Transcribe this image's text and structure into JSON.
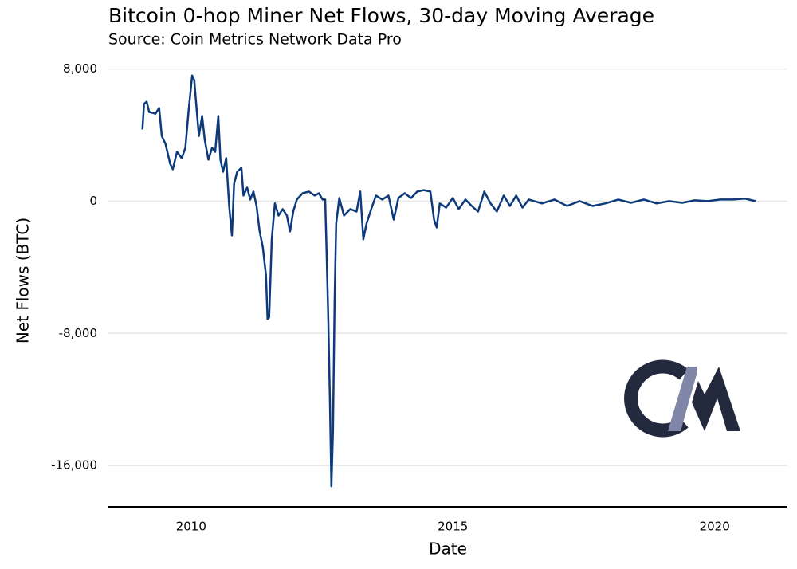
{
  "chart_data": {
    "type": "line",
    "title": "Bitcoin 0-hop Miner Net Flows, 30-day Moving Average",
    "subtitle": "Source: Coin Metrics Network Data Pro",
    "x_label": "Date",
    "y_label": "Net Flows (BTC)",
    "xlim": [
      2008.42,
      2021.39
    ],
    "xticks": [
      2010,
      2015,
      2020
    ],
    "ylim": [
      -18500,
      8800
    ],
    "yticks": [
      {
        "value": -16000,
        "label": "-16,000"
      },
      {
        "value": -8000,
        "label": "-8,000"
      },
      0,
      {
        "value": 8000,
        "label": "8,000"
      }
    ],
    "grid": true,
    "series": [
      {
        "color": "#0d3a7a",
        "x": [
          2009.07,
          2009.1,
          2009.15,
          2009.2,
          2009.32,
          2009.39,
          2009.44,
          2009.51,
          2009.6,
          2009.65,
          2009.73,
          2009.82,
          2009.89,
          2009.95,
          2010.02,
          2010.06,
          2010.11,
          2010.15,
          2010.21,
          2010.26,
          2010.33,
          2010.4,
          2010.46,
          2010.52,
          2010.56,
          2010.61,
          2010.67,
          2010.73,
          2010.78,
          2010.82,
          2010.88,
          2010.96,
          2011.0,
          2011.07,
          2011.13,
          2011.19,
          2011.25,
          2011.31,
          2011.37,
          2011.43,
          2011.46,
          2011.49,
          2011.54,
          2011.6,
          2011.67,
          2011.75,
          2011.83,
          2011.89,
          2011.95,
          2012.02,
          2012.13,
          2012.25,
          2012.36,
          2012.44,
          2012.51,
          2012.56,
          2012.59,
          2012.62,
          2012.65,
          2012.68,
          2012.71,
          2012.74,
          2012.77,
          2012.83,
          2012.92,
          2013.04,
          2013.16,
          2013.23,
          2013.29,
          2013.35,
          2013.44,
          2013.53,
          2013.65,
          2013.77,
          2013.87,
          2013.96,
          2014.08,
          2014.2,
          2014.32,
          2014.44,
          2014.57,
          2014.64,
          2014.69,
          2014.75,
          2014.87,
          2015.0,
          2015.11,
          2015.24,
          2015.36,
          2015.48,
          2015.6,
          2015.72,
          2015.84,
          2015.97,
          2016.09,
          2016.21,
          2016.33,
          2016.45,
          2016.7,
          2016.94,
          2017.18,
          2017.42,
          2017.67,
          2017.91,
          2018.16,
          2018.4,
          2018.65,
          2018.89,
          2019.13,
          2019.38,
          2019.62,
          2019.86,
          2020.11,
          2020.35,
          2020.58,
          2020.78
        ],
        "values": [
          4340,
          5880,
          6020,
          5400,
          5300,
          5640,
          3950,
          3470,
          2270,
          1930,
          2990,
          2600,
          3230,
          5400,
          7610,
          7330,
          5400,
          3950,
          5160,
          3710,
          2510,
          3230,
          2990,
          5160,
          2510,
          1780,
          2600,
          -390,
          -2070,
          1060,
          1780,
          2020,
          340,
          820,
          100,
          580,
          -290,
          -1830,
          -2800,
          -4480,
          -7130,
          -7040,
          -2310,
          -140,
          -870,
          -480,
          -870,
          -1830,
          -630,
          100,
          480,
          580,
          340,
          480,
          100,
          100,
          -3280,
          -7130,
          -11950,
          -17250,
          -13880,
          -6170,
          -1350,
          190,
          -870,
          -480,
          -630,
          580,
          -2310,
          -1350,
          -480,
          340,
          100,
          340,
          -1110,
          190,
          480,
          190,
          580,
          670,
          580,
          -1110,
          -1590,
          -140,
          -390,
          190,
          -480,
          100,
          -290,
          -630,
          580,
          -140,
          -630,
          340,
          -290,
          340,
          -390,
          100,
          -140,
          100,
          -290,
          0,
          -290,
          -140,
          100,
          -100,
          100,
          -140,
          0,
          -100,
          50,
          0,
          100,
          100,
          150,
          0
        ]
      }
    ]
  }
}
